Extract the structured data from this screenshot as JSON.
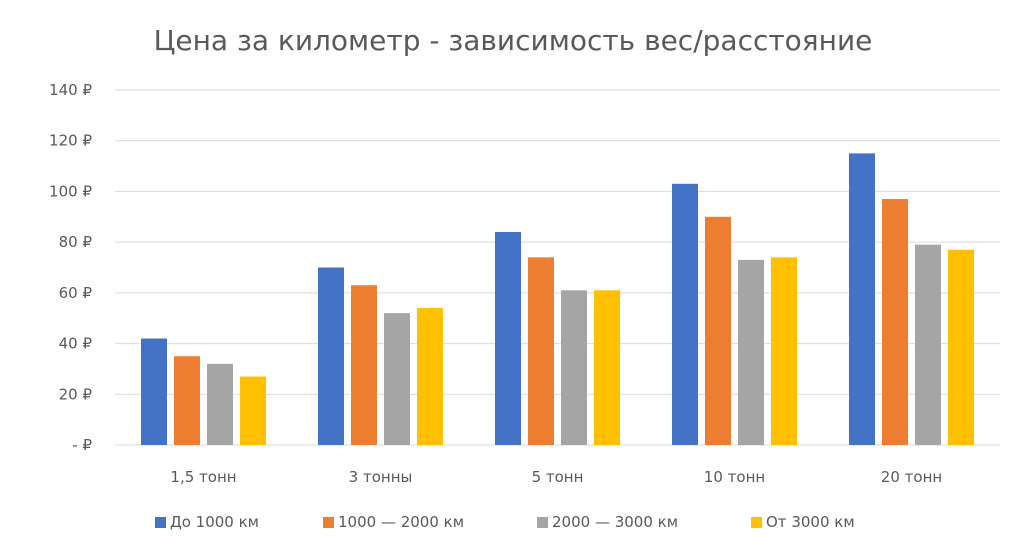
{
  "chart_data": {
    "type": "bar",
    "title": "Цена за километр - зависимость вес/расстояние",
    "xlabel": "",
    "ylabel": "",
    "categories": [
      "1,5 тонн",
      "3 тонны",
      "5 тонн",
      "10 тонн",
      "20 тонн"
    ],
    "series": [
      {
        "name": "До 1000 км",
        "color": "#4472c4",
        "values": [
          42,
          70,
          84,
          103,
          115
        ]
      },
      {
        "name": "1000 — 2000 км",
        "color": "#ed7d31",
        "values": [
          35,
          63,
          74,
          90,
          97
        ]
      },
      {
        "name": "2000 — 3000 км",
        "color": "#a5a5a5",
        "values": [
          32,
          52,
          61,
          73,
          79
        ]
      },
      {
        "name": "От 3000 км",
        "color": "#ffc000",
        "values": [
          27,
          54,
          61,
          74,
          77
        ]
      }
    ],
    "ylim": [
      0,
      140
    ],
    "yticks": [
      0,
      20,
      40,
      60,
      80,
      100,
      120,
      140
    ],
    "ytick_labels": [
      "-  ₽",
      "20 ₽",
      "40 ₽",
      "60 ₽",
      "80 ₽",
      "100 ₽",
      "120 ₽",
      "140 ₽"
    ],
    "grid": true,
    "legend_position": "bottom"
  }
}
